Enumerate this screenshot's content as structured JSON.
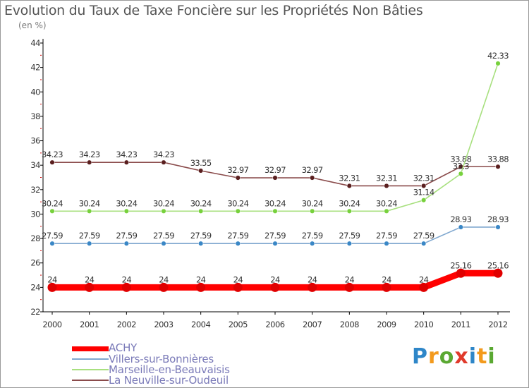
{
  "title": "Evolution du Taux de Taxe Foncière sur les Propriétés Non Bâties",
  "unit_label": "(en %)",
  "brand": {
    "letters": [
      "P",
      "r",
      "o",
      "x",
      "i",
      "t",
      "i"
    ],
    "colors": [
      "#2e86c8",
      "#f39a1d",
      "#5aa832",
      "#e03a2b",
      "#2e86c8",
      "#f39a1d",
      "#5aa832"
    ]
  },
  "chart_data": {
    "type": "line",
    "title": "Evolution du Taux de Taxe Foncière sur les Propriétés Non Bâties",
    "ylabel": "(en %)",
    "xlabel": "",
    "x": [
      "2000",
      "2001",
      "2002",
      "2003",
      "2004",
      "2005",
      "2006",
      "2007",
      "2008",
      "2009",
      "2010",
      "2011",
      "2012"
    ],
    "ylim": [
      22,
      44
    ],
    "yticks": [
      22,
      24,
      26,
      28,
      30,
      32,
      34,
      36,
      38,
      40,
      42,
      44
    ],
    "grid": false,
    "legend_position": "bottom-left",
    "series": [
      {
        "name": "ACHY",
        "color": "#ff0000",
        "marker": "#e00000",
        "width": "thick",
        "values": [
          24,
          24,
          24,
          24,
          24,
          24,
          24,
          24,
          24,
          24,
          24,
          25.16,
          25.16
        ],
        "labels": [
          "24",
          "24",
          "24",
          "24",
          "24",
          "24",
          "24",
          "24",
          "24",
          "24",
          "24",
          "25.16",
          "25.16"
        ]
      },
      {
        "name": "Villers-sur-Bonnières",
        "color": "#7fa7cf",
        "marker": "#3a87c6",
        "width": "thin",
        "values": [
          27.59,
          27.59,
          27.59,
          27.59,
          27.59,
          27.59,
          27.59,
          27.59,
          27.59,
          27.59,
          27.59,
          28.93,
          28.93
        ],
        "labels": [
          "27.59",
          "27.59",
          "27.59",
          "27.59",
          "27.59",
          "27.59",
          "27.59",
          "27.59",
          "27.59",
          "27.59",
          "27.59",
          "28.93",
          "28.93"
        ]
      },
      {
        "name": "Marseille-en-Beauvaisis",
        "color": "#a8e07f",
        "marker": "#77d13c",
        "width": "thin",
        "values": [
          30.24,
          30.24,
          30.24,
          30.24,
          30.24,
          30.24,
          30.24,
          30.24,
          30.24,
          30.24,
          31.14,
          33.3,
          42.33
        ],
        "labels": [
          "30.24",
          "30.24",
          "30.24",
          "30.24",
          "30.24",
          "30.24",
          "30.24",
          "30.24",
          "30.24",
          "30.24",
          "31.14",
          "33.3",
          "42.33"
        ]
      },
      {
        "name": "La Neuville-sur-Oudeuil",
        "color": "#8a4b4b",
        "marker": "#5a1f1f",
        "width": "thin",
        "values": [
          34.23,
          34.23,
          34.23,
          34.23,
          33.55,
          32.97,
          32.97,
          32.97,
          32.31,
          32.31,
          32.31,
          33.88,
          33.88
        ],
        "labels": [
          "34.23",
          "34.23",
          "34.23",
          "34.23",
          "33.55",
          "32.97",
          "32.97",
          "32.97",
          "32.31",
          "32.31",
          "32.31",
          "33.88",
          "33.88"
        ]
      }
    ]
  }
}
